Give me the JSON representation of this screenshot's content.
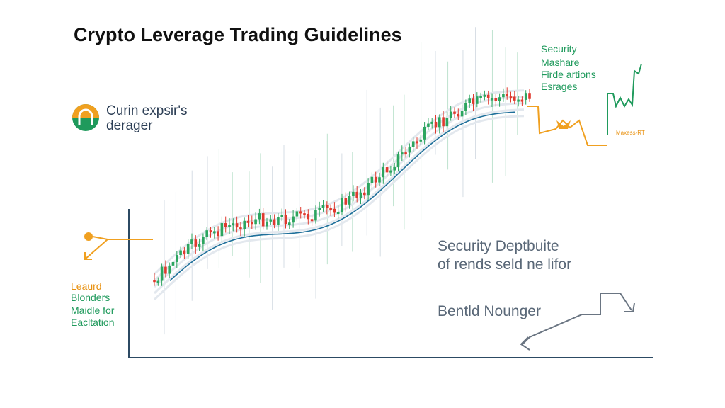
{
  "title": "Crypto Leverage Trading Guidelines",
  "logo_text": [
    "Curin expsir's",
    "derager"
  ],
  "top_right_notes": [
    "Security",
    "Mashare",
    "Firde artions",
    "Esrages"
  ],
  "small_tag": "Maxess-RT",
  "center_right_text": [
    "Security Deptbuite",
    "of rends seld ne lifor"
  ],
  "bottom_right_text": "Bentld Nounger",
  "left_notes": {
    "heading": "Leaurd",
    "lines": [
      "Blonders",
      "Maidle for",
      "Eacltation"
    ]
  }
}
